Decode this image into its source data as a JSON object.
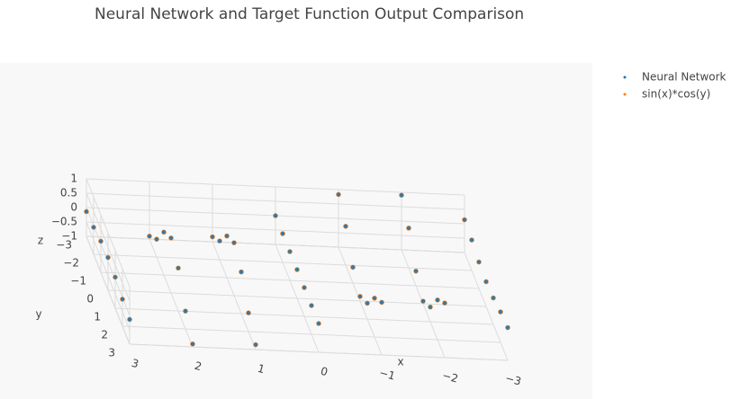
{
  "chart_data": {
    "type": "scatter3d",
    "title": "Neural Network and Target Function Output Comparison",
    "xlabel": "x",
    "ylabel": "y",
    "zlabel": "z",
    "x": [
      -3,
      -2,
      -1,
      0,
      1,
      2,
      3
    ],
    "y": [
      -3,
      -2,
      -1,
      0,
      1,
      2,
      3
    ],
    "series": [
      {
        "name": "Neural Network",
        "color": "#1f77b4",
        "values": [
          [
            0.14,
            0.9,
            0.83,
            0,
            -0.83,
            -0.9,
            -0.14
          ],
          [
            0.06,
            0.38,
            0.35,
            0,
            -0.35,
            -0.38,
            -0.06
          ],
          [
            -0.08,
            -0.49,
            -0.45,
            0,
            0.45,
            0.49,
            0.08
          ],
          [
            -0.14,
            -0.91,
            -0.84,
            0,
            0.84,
            0.91,
            0.14
          ],
          [
            -0.08,
            -0.49,
            -0.45,
            0,
            0.45,
            0.49,
            0.08
          ],
          [
            0.06,
            0.38,
            0.35,
            0,
            -0.35,
            -0.38,
            -0.06
          ],
          [
            0.14,
            0.9,
            0.83,
            0,
            -0.83,
            -0.9,
            -0.14
          ]
        ]
      },
      {
        "name": "sin(x)*cos(y)",
        "color": "#ff7f0e",
        "values": [
          [
            0.14,
            0.9,
            0.83,
            0,
            -0.83,
            -0.9,
            -0.14
          ],
          [
            0.06,
            0.38,
            0.35,
            0,
            -0.35,
            -0.38,
            -0.06
          ],
          [
            -0.08,
            -0.49,
            -0.45,
            0,
            0.45,
            0.49,
            0.08
          ],
          [
            -0.14,
            -0.91,
            -0.84,
            0,
            0.84,
            0.91,
            0.14
          ],
          [
            -0.08,
            -0.49,
            -0.45,
            0,
            0.45,
            0.49,
            0.08
          ],
          [
            0.06,
            0.38,
            0.35,
            0,
            -0.35,
            -0.38,
            -0.06
          ],
          [
            0.14,
            0.9,
            0.83,
            0,
            -0.83,
            -0.9,
            -0.14
          ]
        ]
      }
    ],
    "xlim": [
      -3,
      3
    ],
    "ylim": [
      -3,
      3
    ],
    "zlim": [
      -1,
      1
    ],
    "xticks": [
      {
        "value": -3,
        "label": "−3"
      },
      {
        "value": -2,
        "label": "−2"
      },
      {
        "value": -1,
        "label": "−1"
      },
      0,
      1,
      2,
      3
    ],
    "yticks": [
      {
        "value": -3,
        "label": "−3"
      },
      {
        "value": -2,
        "label": "−2"
      },
      {
        "value": -1,
        "label": "−1"
      },
      0,
      1,
      2,
      3
    ],
    "zticks": [
      {
        "value": -1,
        "label": "−1"
      },
      {
        "value": -0.5,
        "label": "−0.5"
      },
      0,
      0.5,
      1
    ],
    "grid": true,
    "legend": "upper right"
  }
}
